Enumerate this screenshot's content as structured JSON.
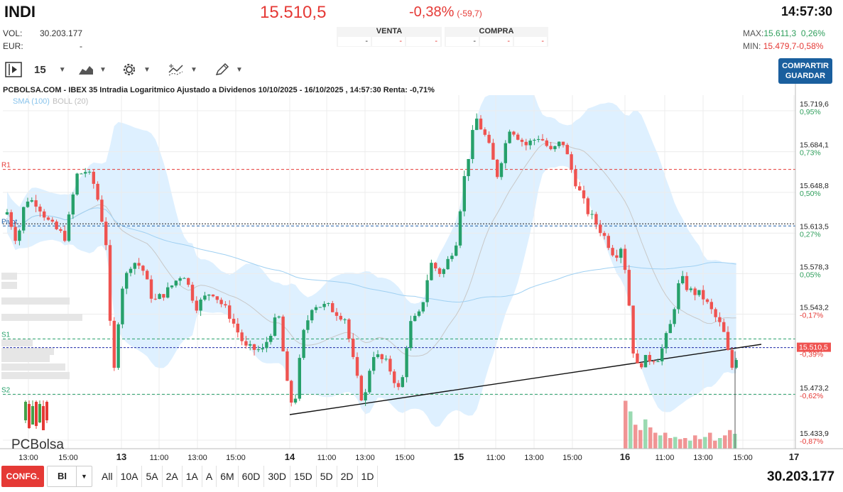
{
  "header": {
    "ticker": "INDI",
    "price": "15.510,5",
    "change_pct": "-0,38%",
    "change_pts": "(-59,7)",
    "time": "14:57:30",
    "vol_label": "VOL:",
    "vol_value": "30.203.177",
    "eur_label": "EUR:",
    "eur_value": "-",
    "max_label": "MAX:",
    "max_value": "15.611,3",
    "max_pct": "0,26%",
    "min_label": "MIN:",
    "min_value": "15.479,7",
    "min_pct": "-0,58%"
  },
  "order_book": {
    "venta_label": "VENTA",
    "compra_label": "COMPRA",
    "venta_cells": [
      "-",
      "-",
      "-"
    ],
    "compra_cells": [
      "-",
      "-",
      "-"
    ]
  },
  "toolbar": {
    "interval": "15",
    "share_line1": "COMPARTIR",
    "share_line2": "GUARDAR"
  },
  "chart_data": {
    "type": "candlestick",
    "title": "PCBOLSA.COM - IBEX 35 Intradia Logaritmico Ajustado a Dividenos 10/10/2025 - 16/10/2025 , 14:57:30 Renta: -0,71%",
    "indicators": {
      "sma": "SMA (100)",
      "boll": "BOLL (20)"
    },
    "y_ticks": [
      {
        "price": "15.719,6",
        "pct": "0,95%"
      },
      {
        "price": "15.684,1",
        "pct": "0,73%"
      },
      {
        "price": "15.648,8",
        "pct": "0,50%"
      },
      {
        "price": "15.613,5",
        "pct": "0,27%"
      },
      {
        "price": "15.578,3",
        "pct": "0,05%"
      },
      {
        "price": "15.543,2",
        "pct": "-0,17%"
      },
      {
        "price": "15.473,2",
        "pct": "-0,62%"
      },
      {
        "price": "15.433,9",
        "pct": "-0,87%"
      }
    ],
    "ylim": [
      15430,
      15725
    ],
    "current_price_label": "15.510,5",
    "current_pct_label": "-0,39%",
    "levels": [
      {
        "name": "R1",
        "price": 15665,
        "color": "#e53935"
      },
      {
        "name": "Pivot",
        "price": 15616,
        "color": "#1e5fa8"
      },
      {
        "name": "S1",
        "price": 15518,
        "color": "#26a06a"
      },
      {
        "name": "S2",
        "price": 15470,
        "color": "#26a06a"
      }
    ],
    "x_ticks": [
      "13:00",
      "15:00",
      "13",
      "11:00",
      "13:00",
      "15:00",
      "14",
      "11:00",
      "13:00",
      "15:00",
      "15",
      "11:00",
      "13:00",
      "15:00",
      "16",
      "11:00",
      "13:00",
      "15:00",
      "17"
    ],
    "bold_x_ticks": [
      "13",
      "14",
      "15",
      "16",
      "17"
    ],
    "colors": {
      "up": "#26a06a",
      "down": "#ef5350",
      "band": "#dcefff",
      "sma": "#9fd0f2",
      "boll_mid": "#c8c8c8"
    },
    "logo_text": "PCBolsa"
  },
  "footer": {
    "config_label": "CONFG.",
    "select_value": "BI",
    "ranges": [
      "All",
      "10A",
      "5A",
      "2A",
      "1A",
      "A",
      "6M",
      "60D",
      "30D",
      "15D",
      "5D",
      "2D",
      "1D"
    ],
    "volume": "30.203.177"
  }
}
